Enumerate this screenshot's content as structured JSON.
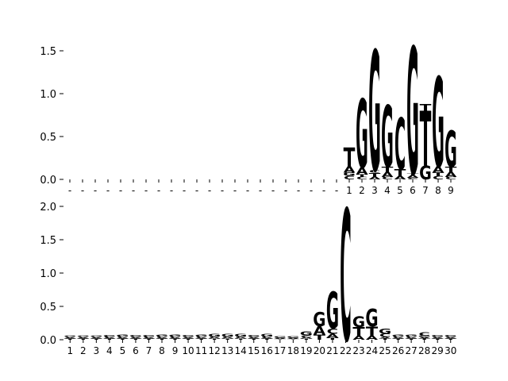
{
  "chart_data": [
    {
      "type": "sequence-logo",
      "title": "",
      "xlabel": "",
      "ylabel": "",
      "ylim": [
        0,
        1.6
      ],
      "yticks": [
        "0.0",
        "0.5",
        "1.0",
        "1.5"
      ],
      "ytick_values": [
        0,
        0.5,
        1.0,
        1.5
      ],
      "leading_gap_columns": 22,
      "gap_symbol": "-",
      "positions": [
        "1",
        "2",
        "3",
        "4",
        "5",
        "6",
        "7",
        "8",
        "9"
      ],
      "columns": [
        [
          [
            "C",
            0.04
          ],
          [
            "G",
            0.04
          ],
          [
            "A",
            0.07
          ],
          [
            "T",
            0.22
          ]
        ],
        [
          [
            "C",
            0.03
          ],
          [
            "T",
            0.03
          ],
          [
            "A",
            0.08
          ],
          [
            "G",
            0.8
          ]
        ],
        [
          [
            "A",
            0.03
          ],
          [
            "T",
            0.05
          ],
          [
            "C",
            0.03
          ],
          [
            "G",
            1.4
          ]
        ],
        [
          [
            "C",
            0.03
          ],
          [
            "A",
            0.06
          ],
          [
            "T",
            0.06
          ],
          [
            "G",
            0.72
          ]
        ],
        [
          [
            "A",
            0.04
          ],
          [
            "T",
            0.08
          ],
          [
            "C",
            0.6
          ]
        ],
        [
          [
            "C",
            0.02
          ],
          [
            "A",
            0.03
          ],
          [
            "T",
            0.02
          ],
          [
            "G",
            1.48
          ]
        ],
        [
          [
            "G",
            0.16
          ],
          [
            "T",
            0.64
          ],
          [
            "T",
            0.08
          ]
        ],
        [
          [
            "C",
            0.04
          ],
          [
            "T",
            0.04
          ],
          [
            "A",
            0.07
          ],
          [
            "G",
            1.05
          ]
        ],
        [
          [
            "C",
            0.03
          ],
          [
            "A",
            0.06
          ],
          [
            "T",
            0.06
          ],
          [
            "G",
            0.42
          ]
        ]
      ]
    },
    {
      "type": "sequence-logo",
      "title": "",
      "xlabel": "",
      "ylabel": "",
      "ylim": [
        0,
        2.0
      ],
      "yticks": [
        "0.0",
        "0.5",
        "1.0",
        "1.5",
        "2.0"
      ],
      "ytick_values": [
        0,
        0.5,
        1.0,
        1.5,
        2.0
      ],
      "leading_gap_columns": 0,
      "gap_symbol": "-",
      "positions": [
        "1",
        "2",
        "3",
        "4",
        "5",
        "6",
        "7",
        "8",
        "9",
        "10",
        "11",
        "12",
        "13",
        "14",
        "15",
        "16",
        "17",
        "18",
        "19",
        "20",
        "21",
        "22",
        "23",
        "24",
        "25",
        "26",
        "27",
        "28",
        "29",
        "30"
      ],
      "columns": [
        [
          [
            "T",
            0.015
          ],
          [
            "A",
            0.015
          ],
          [
            "C",
            0.015
          ],
          [
            "G",
            0.015
          ]
        ],
        [
          [
            "T",
            0.015
          ],
          [
            "A",
            0.015
          ],
          [
            "C",
            0.015
          ],
          [
            "G",
            0.015
          ]
        ],
        [
          [
            "T",
            0.015
          ],
          [
            "A",
            0.015
          ],
          [
            "C",
            0.015
          ],
          [
            "G",
            0.018
          ]
        ],
        [
          [
            "T",
            0.015
          ],
          [
            "A",
            0.015
          ],
          [
            "C",
            0.02
          ],
          [
            "G",
            0.025
          ]
        ],
        [
          [
            "T",
            0.015
          ],
          [
            "A",
            0.015
          ],
          [
            "C",
            0.02
          ],
          [
            "G",
            0.03
          ]
        ],
        [
          [
            "T",
            0.015
          ],
          [
            "A",
            0.015
          ],
          [
            "C",
            0.015
          ],
          [
            "G",
            0.022
          ]
        ],
        [
          [
            "T",
            0.015
          ],
          [
            "A",
            0.015
          ],
          [
            "C",
            0.02
          ],
          [
            "G",
            0.025
          ]
        ],
        [
          [
            "T",
            0.015
          ],
          [
            "A",
            0.015
          ],
          [
            "C",
            0.02
          ],
          [
            "G",
            0.03
          ]
        ],
        [
          [
            "T",
            0.015
          ],
          [
            "A",
            0.015
          ],
          [
            "C",
            0.02
          ],
          [
            "G",
            0.03
          ]
        ],
        [
          [
            "T",
            0.015
          ],
          [
            "A",
            0.015
          ],
          [
            "C",
            0.015
          ],
          [
            "G",
            0.025
          ]
        ],
        [
          [
            "T",
            0.015
          ],
          [
            "A",
            0.015
          ],
          [
            "C",
            0.02
          ],
          [
            "G",
            0.028
          ]
        ],
        [
          [
            "T",
            0.015
          ],
          [
            "A",
            0.02
          ],
          [
            "C",
            0.015
          ],
          [
            "G",
            0.035
          ]
        ],
        [
          [
            "T",
            0.015
          ],
          [
            "A",
            0.02
          ],
          [
            "C",
            0.015
          ],
          [
            "G",
            0.04
          ]
        ],
        [
          [
            "T",
            0.015
          ],
          [
            "A",
            0.02
          ],
          [
            "C",
            0.015
          ],
          [
            "G",
            0.04
          ]
        ],
        [
          [
            "T",
            0.015
          ],
          [
            "A",
            0.015
          ],
          [
            "C",
            0.015
          ],
          [
            "G",
            0.02
          ]
        ],
        [
          [
            "T",
            0.015
          ],
          [
            "A",
            0.015
          ],
          [
            "C",
            0.02
          ],
          [
            "G",
            0.035
          ]
        ],
        [
          [
            "T",
            0.01
          ],
          [
            "A",
            0.012
          ],
          [
            "C",
            0.01
          ],
          [
            "G",
            0.02
          ]
        ],
        [
          [
            "T",
            0.01
          ],
          [
            "A",
            0.012
          ],
          [
            "C",
            0.01
          ],
          [
            "G",
            0.02
          ]
        ],
        [
          [
            "T",
            0.015
          ],
          [
            "A",
            0.02
          ],
          [
            "C",
            0.03
          ],
          [
            "G",
            0.06
          ]
        ],
        [
          [
            "T",
            0.08
          ],
          [
            "A",
            0.12
          ],
          [
            "G",
            0.22
          ]
        ],
        [
          [
            "T",
            0.03
          ],
          [
            "A",
            0.06
          ],
          [
            "C",
            0.08
          ],
          [
            "G",
            0.55
          ]
        ],
        [
          [
            "C",
            1.97
          ]
        ],
        [
          [
            "A",
            0.06
          ],
          [
            "T",
            0.13
          ],
          [
            "G",
            0.16
          ]
        ],
        [
          [
            "A",
            0.06
          ],
          [
            "T",
            0.14
          ],
          [
            "G",
            0.26
          ]
        ],
        [
          [
            "T",
            0.02
          ],
          [
            "A",
            0.02
          ],
          [
            "C",
            0.05
          ],
          [
            "G",
            0.08
          ]
        ],
        [
          [
            "T",
            0.015
          ],
          [
            "A",
            0.015
          ],
          [
            "C",
            0.02
          ],
          [
            "G",
            0.03
          ]
        ],
        [
          [
            "T",
            0.015
          ],
          [
            "A",
            0.015
          ],
          [
            "C",
            0.02
          ],
          [
            "G",
            0.03
          ]
        ],
        [
          [
            "T",
            0.02
          ],
          [
            "A",
            0.02
          ],
          [
            "G",
            0.02
          ],
          [
            "C",
            0.05
          ]
        ],
        [
          [
            "T",
            0.015
          ],
          [
            "A",
            0.015
          ],
          [
            "C",
            0.015
          ],
          [
            "G",
            0.025
          ]
        ],
        [
          [
            "T",
            0.015
          ],
          [
            "A",
            0.015
          ],
          [
            "C",
            0.015
          ],
          [
            "G",
            0.025
          ]
        ]
      ]
    }
  ],
  "colors": {
    "A": "#008000",
    "C": "#0000ff",
    "G": "#ffa500",
    "T": "#ff0000"
  }
}
